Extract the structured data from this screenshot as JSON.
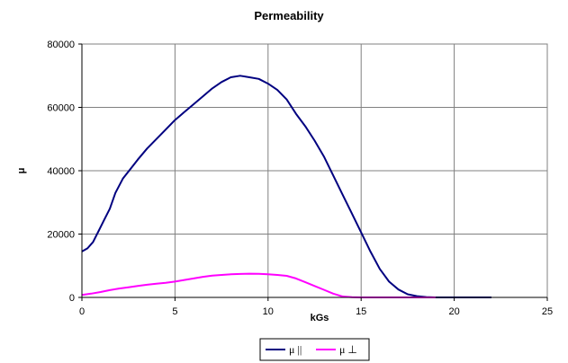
{
  "chart_data": {
    "type": "line",
    "title": "Permeability",
    "xlabel": "kGs",
    "ylabel": "μ",
    "xlim": [
      0,
      25
    ],
    "ylim": [
      0,
      80000
    ],
    "xticks": [
      0,
      5,
      10,
      15,
      20,
      25
    ],
    "yticks": [
      0,
      20000,
      40000,
      60000,
      80000
    ],
    "grid": true,
    "legend_position": "bottom",
    "series": [
      {
        "name": "μ ||",
        "color": "#000080",
        "x": [
          0,
          0.3,
          0.6,
          0.9,
          1.2,
          1.5,
          1.8,
          2.2,
          2.6,
          3,
          3.5,
          4,
          4.5,
          5,
          5.5,
          6,
          6.5,
          7,
          7.5,
          8,
          8.5,
          9,
          9.5,
          10,
          10.5,
          11,
          11.5,
          12,
          12.5,
          13,
          13.5,
          14,
          14.5,
          15,
          15.5,
          16,
          16.5,
          17,
          17.5,
          18,
          18.5,
          19,
          19.5,
          20,
          21,
          22
        ],
        "y": [
          14500,
          15500,
          17500,
          21000,
          24500,
          28000,
          33000,
          37500,
          40500,
          43500,
          47000,
          50000,
          53000,
          56000,
          58500,
          61000,
          63500,
          66000,
          68000,
          69500,
          70000,
          69500,
          69000,
          67500,
          65500,
          62500,
          58000,
          54000,
          49500,
          44500,
          38500,
          32500,
          26500,
          20500,
          14500,
          9000,
          5000,
          2500,
          1000,
          400,
          100,
          0,
          0,
          0,
          0,
          0
        ]
      },
      {
        "name": "μ ⊥",
        "color": "#FF00FF",
        "x": [
          0,
          0.5,
          1,
          1.5,
          2,
          2.5,
          3,
          3.5,
          4,
          4.5,
          5,
          5.5,
          6,
          6.5,
          7,
          7.5,
          8,
          8.5,
          9,
          9.5,
          10,
          10.5,
          11,
          11.5,
          12,
          12.5,
          13,
          13.5,
          14,
          14.5,
          15,
          16,
          17,
          18,
          19
        ],
        "y": [
          800,
          1200,
          1700,
          2300,
          2800,
          3200,
          3600,
          4000,
          4300,
          4600,
          5000,
          5500,
          6000,
          6500,
          6900,
          7100,
          7300,
          7400,
          7500,
          7450,
          7300,
          7100,
          6800,
          6000,
          4800,
          3600,
          2400,
          1200,
          300,
          50,
          0,
          0,
          0,
          0,
          0
        ]
      }
    ]
  }
}
